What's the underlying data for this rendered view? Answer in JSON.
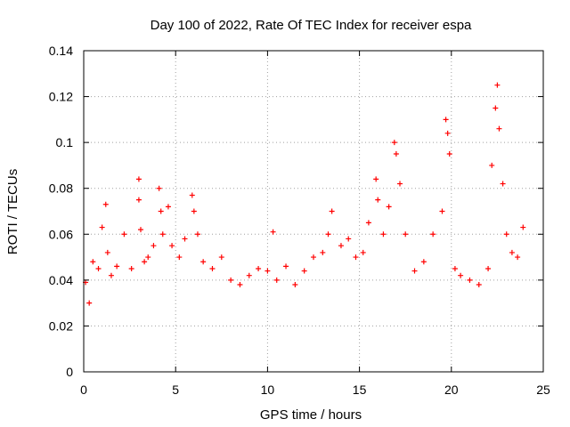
{
  "chart_data": {
    "type": "scatter",
    "title": "Day 100 of 2022, Rate Of TEC Index for receiver espa",
    "xlabel": "GPS time / hours",
    "ylabel": "ROTI / TECUs",
    "xlim": [
      0,
      25
    ],
    "ylim": [
      0,
      0.14
    ],
    "xticks": [
      0,
      5,
      10,
      15,
      20,
      25
    ],
    "yticks": [
      0,
      0.02,
      0.04,
      0.06,
      0.08,
      0.1,
      0.12,
      0.14
    ],
    "xtick_labels": [
      "0",
      "5",
      "10",
      "15",
      "20",
      "25"
    ],
    "ytick_labels": [
      "0",
      "0.02",
      "0.04",
      "0.06",
      "0.08",
      "0.1",
      "0.12",
      "0.14"
    ],
    "grid": true,
    "marker": "+",
    "series": [
      {
        "name": "ROTI",
        "color": "#ff0000",
        "x": [
          0.1,
          0.3,
          0.5,
          0.8,
          1.0,
          1.2,
          1.3,
          1.5,
          1.8,
          2.2,
          2.6,
          3.0,
          3.0,
          3.1,
          3.3,
          3.5,
          3.8,
          4.1,
          4.2,
          4.3,
          4.6,
          4.8,
          5.2,
          5.5,
          5.9,
          6.0,
          6.2,
          6.5,
          7.0,
          7.5,
          8.0,
          8.5,
          9.0,
          9.5,
          10.0,
          10.3,
          10.5,
          11.0,
          11.5,
          12.0,
          12.5,
          13.0,
          13.3,
          13.5,
          14.0,
          14.4,
          14.8,
          15.2,
          15.5,
          15.9,
          16.0,
          16.3,
          16.6,
          16.9,
          17.0,
          17.2,
          17.5,
          18.0,
          18.5,
          19.0,
          19.5,
          19.7,
          19.8,
          19.9,
          20.2,
          20.5,
          21.0,
          21.5,
          22.0,
          22.2,
          22.4,
          22.5,
          22.6,
          22.8,
          23.0,
          23.3,
          23.6,
          23.9
        ],
        "y": [
          0.039,
          0.03,
          0.048,
          0.045,
          0.063,
          0.073,
          0.052,
          0.042,
          0.046,
          0.06,
          0.045,
          0.084,
          0.075,
          0.062,
          0.048,
          0.05,
          0.055,
          0.08,
          0.07,
          0.06,
          0.072,
          0.055,
          0.05,
          0.058,
          0.077,
          0.07,
          0.06,
          0.048,
          0.045,
          0.05,
          0.04,
          0.038,
          0.042,
          0.045,
          0.044,
          0.061,
          0.04,
          0.046,
          0.038,
          0.044,
          0.05,
          0.052,
          0.06,
          0.07,
          0.055,
          0.058,
          0.05,
          0.052,
          0.065,
          0.084,
          0.075,
          0.06,
          0.072,
          0.1,
          0.095,
          0.082,
          0.06,
          0.044,
          0.048,
          0.06,
          0.07,
          0.11,
          0.104,
          0.095,
          0.045,
          0.042,
          0.04,
          0.038,
          0.045,
          0.09,
          0.115,
          0.125,
          0.106,
          0.082,
          0.06,
          0.052,
          0.05,
          0.063
        ]
      }
    ]
  }
}
